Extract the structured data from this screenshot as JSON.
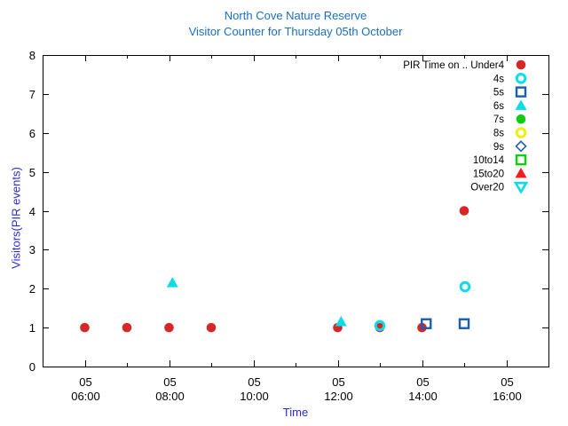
{
  "title": {
    "line1": "North Cove Nature Reserve",
    "line2": "Visitor Counter for Thursday 05th October",
    "color": "#1a6fc2"
  },
  "axes": {
    "x": {
      "label": "Time",
      "label_color": "#2b2bd0",
      "major_ticks": [
        {
          "day": "05",
          "time": "06:00",
          "hour": 6
        },
        {
          "day": "05",
          "time": "08:00",
          "hour": 8
        },
        {
          "day": "05",
          "time": "10:00",
          "hour": 10
        },
        {
          "day": "05",
          "time": "12:00",
          "hour": 12
        },
        {
          "day": "05",
          "time": "14:00",
          "hour": 14
        },
        {
          "day": "05",
          "time": "16:00",
          "hour": 16
        }
      ],
      "minor_hours": [
        5,
        7,
        9,
        11,
        13,
        15,
        17
      ],
      "range_hours": [
        5,
        17
      ]
    },
    "y": {
      "label": "Visitors(PIR events)",
      "label_color": "#2b2bd0",
      "ticks": [
        0,
        1,
        2,
        3,
        4,
        5,
        6,
        7,
        8
      ],
      "range": [
        0,
        8
      ]
    }
  },
  "legend": {
    "title_prefix": "PIR Time on ..",
    "items": [
      {
        "label": "PIR Time on .. Under4",
        "marker": "circle-filled",
        "color": "#d52728"
      },
      {
        "label": "4s",
        "marker": "circle-open",
        "color": "#0bdde6"
      },
      {
        "label": "5s",
        "marker": "square-open",
        "color": "#1b5eae"
      },
      {
        "label": "6s",
        "marker": "triangle-up-filled",
        "color": "#0bdde6"
      },
      {
        "label": "7s",
        "marker": "circle-filled",
        "color": "#11cc11"
      },
      {
        "label": "8s",
        "marker": "circle-open",
        "color": "#f0ee10"
      },
      {
        "label": "9s",
        "marker": "diamond-open",
        "color": "#1b5eae"
      },
      {
        "label": "10to14",
        "marker": "square-open",
        "color": "#11cc11"
      },
      {
        "label": "15to20",
        "marker": "triangle-up-filled",
        "color": "#f21d1d"
      },
      {
        "label": "Over20",
        "marker": "triangle-down-open",
        "color": "#0bdde6"
      }
    ]
  },
  "chart_data": {
    "type": "scatter",
    "title": "North Cove Nature Reserve",
    "subtitle": "Visitor Counter for Thursday 05th October",
    "xlabel": "Time",
    "ylabel": "Visitors(PIR events)",
    "x_unit": "hour-of-day on 05th",
    "xlim": [
      5,
      17
    ],
    "ylim": [
      0,
      8
    ],
    "grid": false,
    "legend_position": "top-right-inside",
    "series": [
      {
        "name": "PIR Time on .. Under4",
        "marker": "circle-filled",
        "color": "#d52728",
        "points": [
          [
            6,
            1
          ],
          [
            7,
            1
          ],
          [
            8,
            1
          ],
          [
            9,
            1
          ],
          [
            12,
            1
          ],
          [
            13,
            1
          ],
          [
            14,
            1
          ],
          [
            15,
            4
          ]
        ]
      },
      {
        "name": "4s",
        "marker": "circle-open",
        "color": "#0bdde6",
        "points": [
          [
            13,
            1.05
          ],
          [
            15.02,
            2.05
          ]
        ]
      },
      {
        "name": "5s",
        "marker": "square-open",
        "color": "#1b5eae",
        "points": [
          [
            14.1,
            1.1
          ],
          [
            15,
            1.1
          ]
        ]
      },
      {
        "name": "6s",
        "marker": "triangle-up-filled",
        "color": "#0bdde6",
        "points": [
          [
            8.08,
            2.15
          ],
          [
            12.08,
            1.15
          ]
        ]
      },
      {
        "name": "7s",
        "marker": "circle-filled",
        "color": "#11cc11",
        "points": []
      },
      {
        "name": "8s",
        "marker": "circle-open",
        "color": "#f0ee10",
        "points": []
      },
      {
        "name": "9s",
        "marker": "diamond-open",
        "color": "#1b5eae",
        "points": []
      },
      {
        "name": "10to14",
        "marker": "square-open",
        "color": "#11cc11",
        "points": []
      },
      {
        "name": "15to20",
        "marker": "triangle-up-filled",
        "color": "#f21d1d",
        "points": []
      },
      {
        "name": "Over20",
        "marker": "triangle-down-open",
        "color": "#0bdde6",
        "points": []
      }
    ]
  }
}
